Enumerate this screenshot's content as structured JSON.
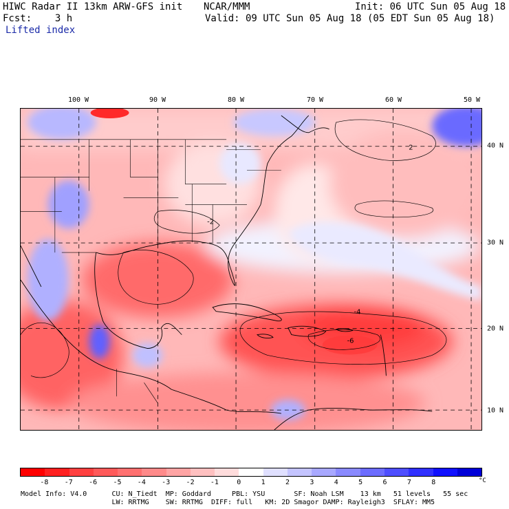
{
  "header": {
    "model": "HIWC Radar II 13km ARW-GFS init",
    "agency": "NCAR/MMM",
    "init": "Init: 06 UTC Sun 05 Aug 18",
    "forecast": "Fcst:    3 h",
    "valid": "Valid: 09 UTC Sun 05 Aug 18 (05 EDT Sun 05 Aug 18)",
    "field": "Lifted index"
  },
  "map": {
    "longitude_labels": [
      "100 W",
      "90 W",
      "80 W",
      "70 W",
      "60 W",
      "50 W"
    ],
    "latitude_labels": [
      "40 N",
      "30 N",
      "20 N",
      "10 N"
    ],
    "contour_label": "2",
    "contour_labels_neg": [
      "-2",
      "-4",
      "-6"
    ]
  },
  "colorbar": {
    "labels": [
      "-8",
      "-7",
      "-6",
      "-5",
      "-4",
      "-3",
      "-2",
      "-1",
      "0",
      "1",
      "2",
      "3",
      "4",
      "5",
      "6",
      "7",
      "8"
    ],
    "unit": "°C",
    "colors": [
      "#ff0000",
      "#ff2020",
      "#ff4040",
      "#ff5a5a",
      "#ff7070",
      "#ff8a8a",
      "#ffa4a4",
      "#ffc0c0",
      "#ffdcdc",
      "#ffffff",
      "#e0e0ff",
      "#c4c4ff",
      "#a8a8ff",
      "#8a8aff",
      "#6c6cff",
      "#4e4eff",
      "#3030ff",
      "#1010ff",
      "#0000d8"
    ]
  },
  "model_info": {
    "line1": "Model Info: V4.0      CU: N_Tiedt  MP: Goddard     PBL: YSU       SF: Noah LSM    13 km   51 levels   55 sec",
    "line2": "                      LW: RRTMG    SW: RRTMG  DIFF: full   KM: 2D Smagor DAMP: Rayleigh3  SFLAY: MM5"
  }
}
